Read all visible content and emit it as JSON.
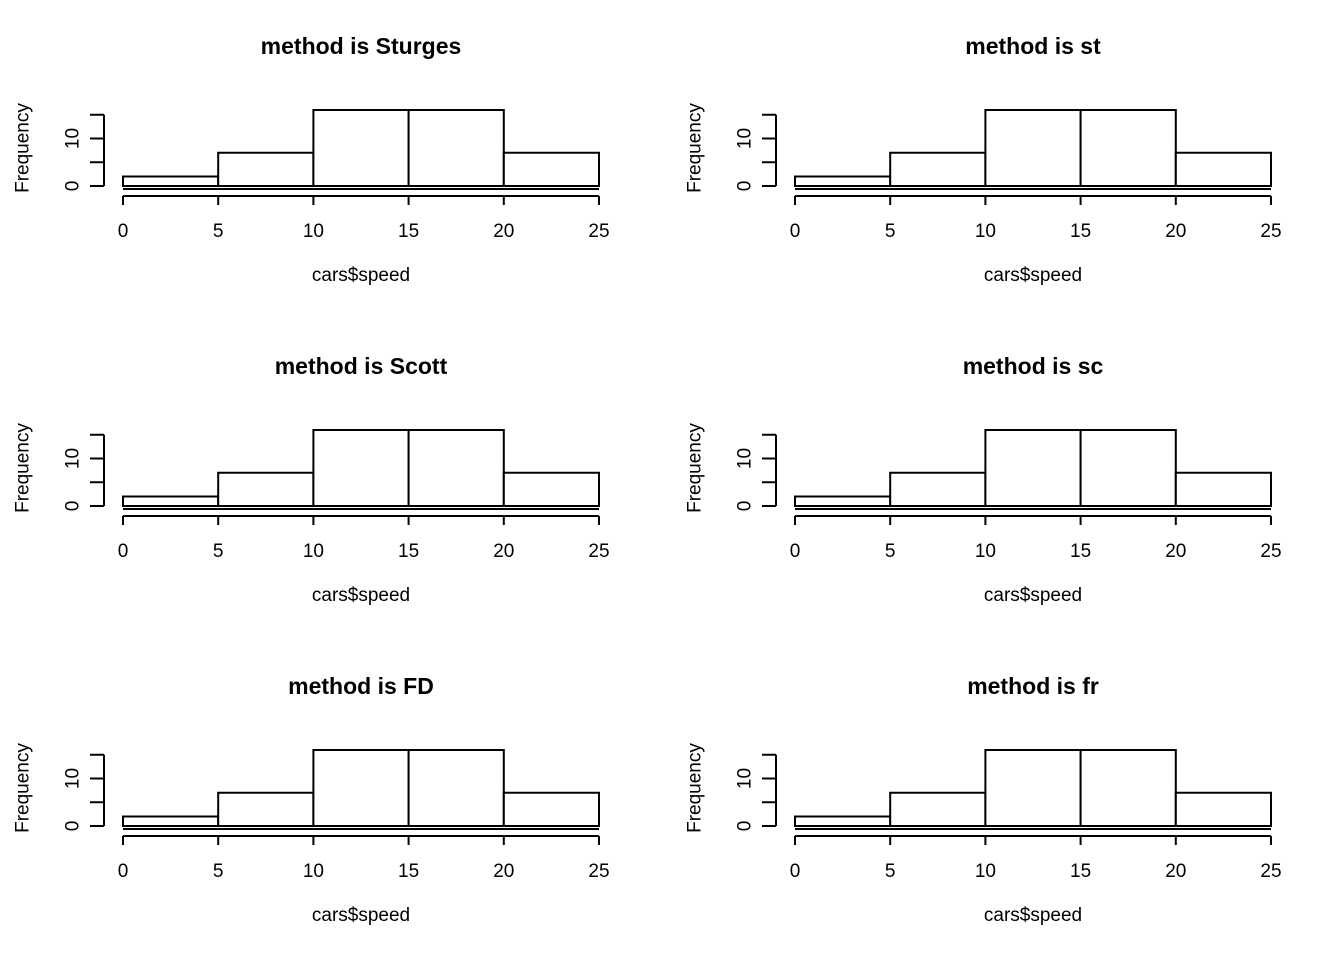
{
  "chart_data": [
    {
      "type": "bar",
      "title": "method is Sturges",
      "xlabel": "cars$speed",
      "ylabel": "Frequency",
      "bin_edges": [
        0,
        5,
        10,
        15,
        20,
        25
      ],
      "values": [
        2,
        7,
        16,
        16,
        7
      ],
      "x_ticks": [
        0,
        5,
        10,
        15,
        20,
        25
      ],
      "y_ticks": [
        0,
        5,
        10,
        15
      ],
      "y_tick_labels": [
        "0",
        "",
        "10",
        ""
      ],
      "xlim": [
        0,
        25
      ],
      "ylim": [
        0,
        16
      ]
    },
    {
      "type": "bar",
      "title": "method is st",
      "xlabel": "cars$speed",
      "ylabel": "Frequency",
      "bin_edges": [
        0,
        5,
        10,
        15,
        20,
        25
      ],
      "values": [
        2,
        7,
        16,
        16,
        7
      ],
      "x_ticks": [
        0,
        5,
        10,
        15,
        20,
        25
      ],
      "y_ticks": [
        0,
        5,
        10,
        15
      ],
      "y_tick_labels": [
        "0",
        "",
        "10",
        ""
      ],
      "xlim": [
        0,
        25
      ],
      "ylim": [
        0,
        16
      ]
    },
    {
      "type": "bar",
      "title": "method is Scott",
      "xlabel": "cars$speed",
      "ylabel": "Frequency",
      "bin_edges": [
        0,
        5,
        10,
        15,
        20,
        25
      ],
      "values": [
        2,
        7,
        16,
        16,
        7
      ],
      "x_ticks": [
        0,
        5,
        10,
        15,
        20,
        25
      ],
      "y_ticks": [
        0,
        5,
        10,
        15
      ],
      "y_tick_labels": [
        "0",
        "",
        "10",
        ""
      ],
      "xlim": [
        0,
        25
      ],
      "ylim": [
        0,
        16
      ]
    },
    {
      "type": "bar",
      "title": "method is sc",
      "xlabel": "cars$speed",
      "ylabel": "Frequency",
      "bin_edges": [
        0,
        5,
        10,
        15,
        20,
        25
      ],
      "values": [
        2,
        7,
        16,
        16,
        7
      ],
      "x_ticks": [
        0,
        5,
        10,
        15,
        20,
        25
      ],
      "y_ticks": [
        0,
        5,
        10,
        15
      ],
      "y_tick_labels": [
        "0",
        "",
        "10",
        ""
      ],
      "xlim": [
        0,
        25
      ],
      "ylim": [
        0,
        16
      ]
    },
    {
      "type": "bar",
      "title": "method is FD",
      "xlabel": "cars$speed",
      "ylabel": "Frequency",
      "bin_edges": [
        0,
        5,
        10,
        15,
        20,
        25
      ],
      "values": [
        2,
        7,
        16,
        16,
        7
      ],
      "x_ticks": [
        0,
        5,
        10,
        15,
        20,
        25
      ],
      "y_ticks": [
        0,
        5,
        10,
        15
      ],
      "y_tick_labels": [
        "0",
        "",
        "10",
        ""
      ],
      "xlim": [
        0,
        25
      ],
      "ylim": [
        0,
        16
      ]
    },
    {
      "type": "bar",
      "title": "method is fr",
      "xlabel": "cars$speed",
      "ylabel": "Frequency",
      "bin_edges": [
        0,
        5,
        10,
        15,
        20,
        25
      ],
      "values": [
        2,
        7,
        16,
        16,
        7
      ],
      "x_ticks": [
        0,
        5,
        10,
        15,
        20,
        25
      ],
      "y_ticks": [
        0,
        5,
        10,
        15
      ],
      "y_tick_labels": [
        "0",
        "",
        "10",
        ""
      ],
      "xlim": [
        0,
        25
      ],
      "ylim": [
        0,
        16
      ]
    }
  ]
}
